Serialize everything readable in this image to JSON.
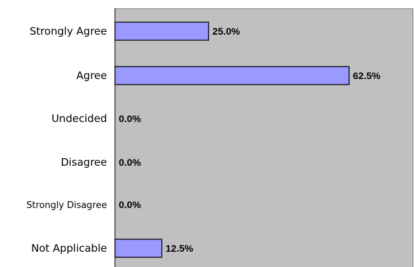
{
  "chart_data": {
    "type": "bar",
    "orientation": "horizontal",
    "categories": [
      "Strongly Agree",
      "Agree",
      "Undecided",
      "Disagree",
      "Strongly Disagree",
      "Not Applicable"
    ],
    "values": [
      25.0,
      62.5,
      0.0,
      0.0,
      0.0,
      12.5
    ],
    "data_labels": [
      "25.0%",
      "62.5%",
      "0.0%",
      "0.0%",
      "0.0%",
      "12.5%"
    ],
    "xlim": [
      0,
      80
    ],
    "grid": false,
    "legend": "none",
    "colors": {
      "bar_fill": "#9999ff",
      "bar_stroke": "#000000",
      "plot_background": "#c0c0c0",
      "plot_border": "#808080"
    }
  }
}
